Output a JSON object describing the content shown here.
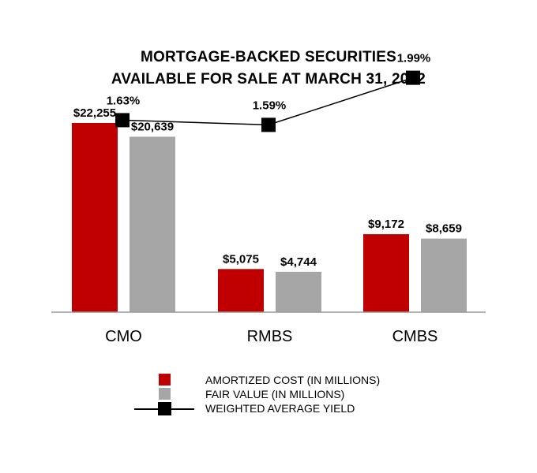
{
  "chart_data": {
    "type": "bar",
    "title_lines": [
      "MORTGAGE-BACKED SECURITIES",
      "AVAILABLE FOR SALE AT MARCH 31, 2022"
    ],
    "categories": [
      "CMO",
      "RMBS",
      "CMBS"
    ],
    "series": [
      {
        "name": "AMORTIZED COST (IN MILLIONS)",
        "kind": "bar",
        "color": "#c00000",
        "values": [
          22255,
          5075,
          9172
        ],
        "labels": [
          "$22,255",
          "$5,075",
          "$9,172"
        ]
      },
      {
        "name": "FAIR VALUE (IN MILLIONS)",
        "kind": "bar",
        "color": "#a6a6a6",
        "values": [
          20639,
          4744,
          8659
        ],
        "labels": [
          "$20,639",
          "$4,744",
          "$8,659"
        ]
      },
      {
        "name": "WEIGHTED AVERAGE YIELD",
        "kind": "line",
        "color": "#000000",
        "values": [
          1.63,
          1.59,
          1.99
        ],
        "labels": [
          "1.63%",
          "1.59%",
          "1.99%"
        ]
      }
    ],
    "ylim": [
      0,
      22255
    ],
    "line_ylim": [
      0,
      2.65
    ],
    "grid": false,
    "legend_position": "bottom"
  }
}
